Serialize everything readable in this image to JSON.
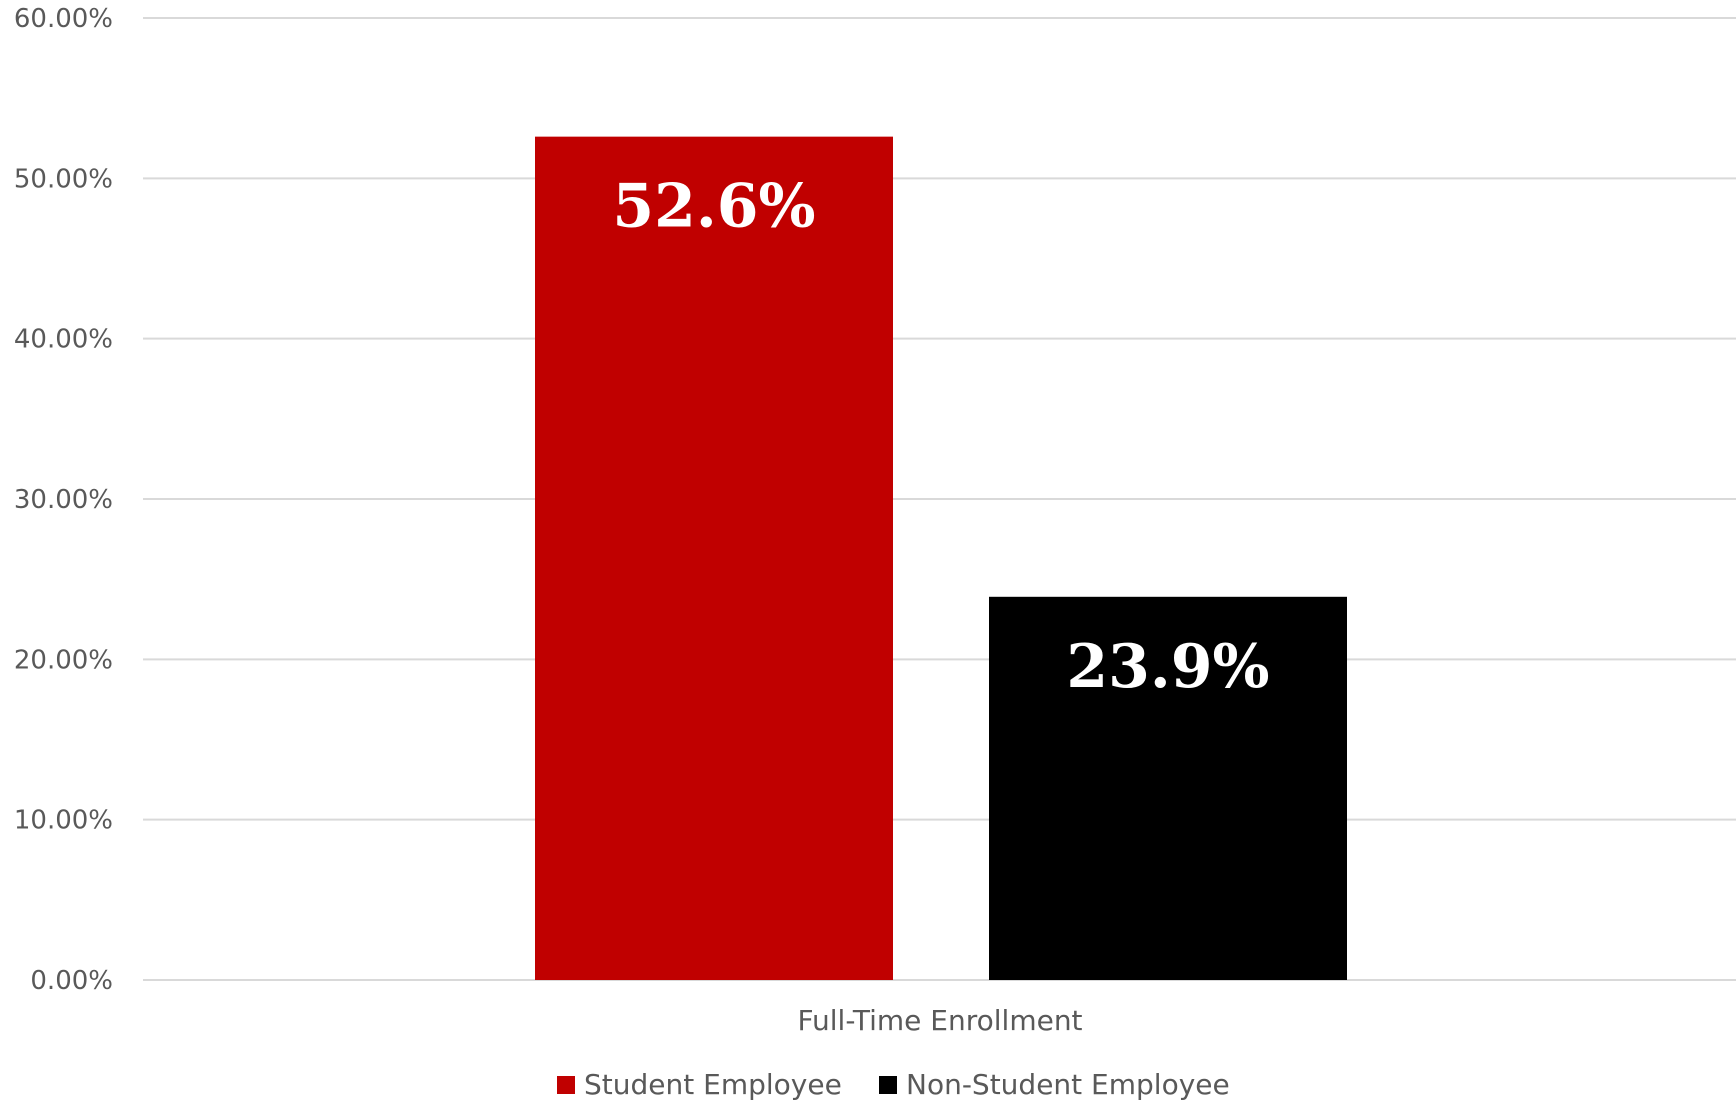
{
  "chart_data": {
    "type": "bar",
    "categories": [
      "Full-Time Enrollment"
    ],
    "series": [
      {
        "name": "Student Employee",
        "values": [
          52.6
        ],
        "label": "52.6%",
        "color": "#c00000"
      },
      {
        "name": "Non-Student Employee",
        "values": [
          23.9
        ],
        "label": "23.9%",
        "color": "#000000"
      }
    ],
    "title": "",
    "xlabel": "",
    "ylabel": "",
    "ylim": [
      0,
      60
    ],
    "yticks": [
      0,
      10,
      20,
      30,
      40,
      50,
      60
    ],
    "ytick_labels": [
      "0.00%",
      "10.00%",
      "20.00%",
      "30.00%",
      "40.00%",
      "50.00%",
      "60.00%"
    ],
    "grid": true,
    "gridline_color": "#d9d9d9",
    "legend_position": "bottom"
  }
}
